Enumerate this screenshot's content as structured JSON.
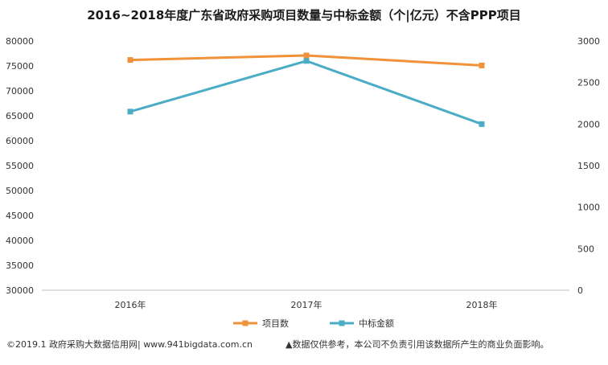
{
  "chart_data": {
    "type": "line",
    "title": "2016~2018年度广东省政府采购项目数量与中标金额（个|亿元）不含PPP项目",
    "categories": [
      "2016年",
      "2017年",
      "2018年"
    ],
    "series": [
      {
        "name": "项目数",
        "axis": "left",
        "color": "#F0923A",
        "values": [
          76200,
          77100,
          75100
        ]
      },
      {
        "name": "中标金额",
        "axis": "right",
        "color": "#4BACC6",
        "values": [
          2150,
          2760,
          2000
        ]
      }
    ],
    "y_left": {
      "min": 30000,
      "max": 80000,
      "ticks": [
        "80000",
        "75000",
        "70000",
        "65000",
        "60000",
        "55000",
        "50000",
        "45000",
        "40000",
        "35000",
        "30000"
      ]
    },
    "y_right": {
      "min": 0,
      "max": 3000,
      "ticks": [
        "3000",
        "2500",
        "2000",
        "1500",
        "1000",
        "500",
        "0"
      ]
    },
    "legend_position": "bottom",
    "grid": false
  },
  "footer": {
    "left": "©2019.1 政府采购大数据信用网| www.941bigdata.com.cn",
    "right": "▲数据仅供参考，本公司不负责引用该数据所产生的商业负面影响。"
  }
}
